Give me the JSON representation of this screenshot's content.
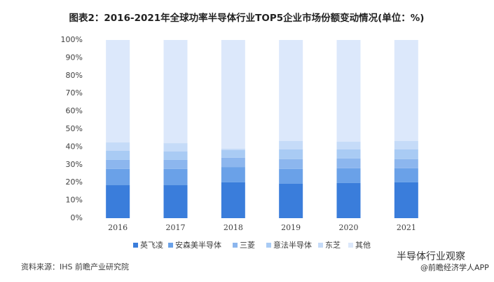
{
  "chart_data": {
    "type": "stacked_bar_percent",
    "title": "图表2：2016-2021年全球功率半导体行业TOP5企业市场份额变动情况(单位：%)",
    "categories": [
      "2016",
      "2017",
      "2018",
      "2019",
      "2020",
      "2021"
    ],
    "series": [
      {
        "name": "英飞凌",
        "color": "#3a7ddb",
        "values": [
          18.5,
          18.5,
          20.1,
          19.3,
          19.7,
          20.1
        ]
      },
      {
        "name": "安森美半导体",
        "color": "#6aa1e8",
        "values": [
          9.1,
          9.1,
          8.6,
          8.3,
          8.3,
          7.9
        ]
      },
      {
        "name": "三菱",
        "color": "#8cb6ee",
        "values": [
          5.1,
          5.1,
          5.2,
          5.5,
          5.5,
          5.1
        ]
      },
      {
        "name": "意法半导体",
        "color": "#a9cbf4",
        "values": [
          5.1,
          4.7,
          4.3,
          5.5,
          5.1,
          5.5
        ]
      },
      {
        "name": "东芝",
        "color": "#c5dbf8",
        "values": [
          4.7,
          4.7,
          0.8,
          4.7,
          4.3,
          4.7
        ]
      },
      {
        "name": "其他",
        "color": "#dce8fb",
        "values": [
          57.5,
          57.9,
          61.0,
          56.7,
          57.1,
          56.7
        ]
      }
    ],
    "ylim": [
      0,
      100
    ],
    "yticks": [
      {
        "value": 0,
        "label": "0%"
      },
      {
        "value": 10,
        "label": "10%"
      },
      {
        "value": 20,
        "label": "20%"
      },
      {
        "value": 30,
        "label": "30%"
      },
      {
        "value": 40,
        "label": "40%"
      },
      {
        "value": 50,
        "label": "50%"
      },
      {
        "value": 60,
        "label": "60%"
      },
      {
        "value": 70,
        "label": "70%"
      },
      {
        "value": 80,
        "label": "80%"
      },
      {
        "value": 90,
        "label": "90%"
      },
      {
        "value": 100,
        "label": "100%"
      }
    ],
    "grid": false,
    "legend": "bottom",
    "source": "资料来源：IHS 前瞻产业研究院",
    "watermark": "半导体行业观察",
    "watermark_sub": "@前瞻经济学人APP"
  }
}
